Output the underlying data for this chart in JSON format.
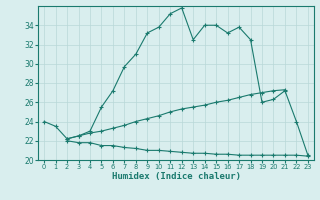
{
  "xlabel": "Humidex (Indice chaleur)",
  "ylabel": "",
  "x_main": [
    0,
    1,
    2,
    3,
    4,
    5,
    6,
    7,
    8,
    9,
    10,
    11,
    12,
    13,
    14,
    15,
    16,
    17,
    18,
    19,
    20,
    21,
    22,
    23
  ],
  "main_line": [
    24.0,
    23.5,
    22.2,
    22.5,
    23.0,
    25.5,
    27.2,
    29.7,
    31.0,
    33.2,
    33.8,
    35.2,
    35.8,
    32.5,
    34.0,
    34.0,
    33.2,
    33.8,
    32.5,
    26.0,
    26.3,
    27.2,
    24.0,
    20.5
  ],
  "mid_line_x": [
    2,
    3,
    4,
    5,
    6,
    7,
    8,
    9,
    10,
    11,
    12,
    13,
    14,
    15,
    16,
    17,
    18,
    19,
    20,
    21
  ],
  "mid_line_y": [
    22.2,
    22.5,
    22.8,
    23.0,
    23.3,
    23.6,
    24.0,
    24.3,
    24.6,
    25.0,
    25.3,
    25.5,
    25.7,
    26.0,
    26.2,
    26.5,
    26.8,
    27.0,
    27.2,
    27.3
  ],
  "low_line_x": [
    2,
    3,
    4,
    5,
    6,
    7,
    8,
    9,
    10,
    11,
    12,
    13,
    14,
    15,
    16,
    17,
    18,
    19,
    20,
    21,
    22,
    23
  ],
  "low_line_y": [
    22.0,
    21.8,
    21.8,
    21.5,
    21.5,
    21.3,
    21.2,
    21.0,
    21.0,
    20.9,
    20.8,
    20.7,
    20.7,
    20.6,
    20.6,
    20.5,
    20.5,
    20.5,
    20.5,
    20.5,
    20.5,
    20.4
  ],
  "line_color": "#1a7a6e",
  "bg_color": "#d9eeee",
  "grid_color": "#b8d8d8",
  "ylim": [
    20,
    36
  ],
  "yticks": [
    20,
    22,
    24,
    26,
    28,
    30,
    32,
    34
  ],
  "xticks": [
    0,
    1,
    2,
    3,
    4,
    5,
    6,
    7,
    8,
    9,
    10,
    11,
    12,
    13,
    14,
    15,
    16,
    17,
    18,
    19,
    20,
    21,
    22,
    23
  ]
}
